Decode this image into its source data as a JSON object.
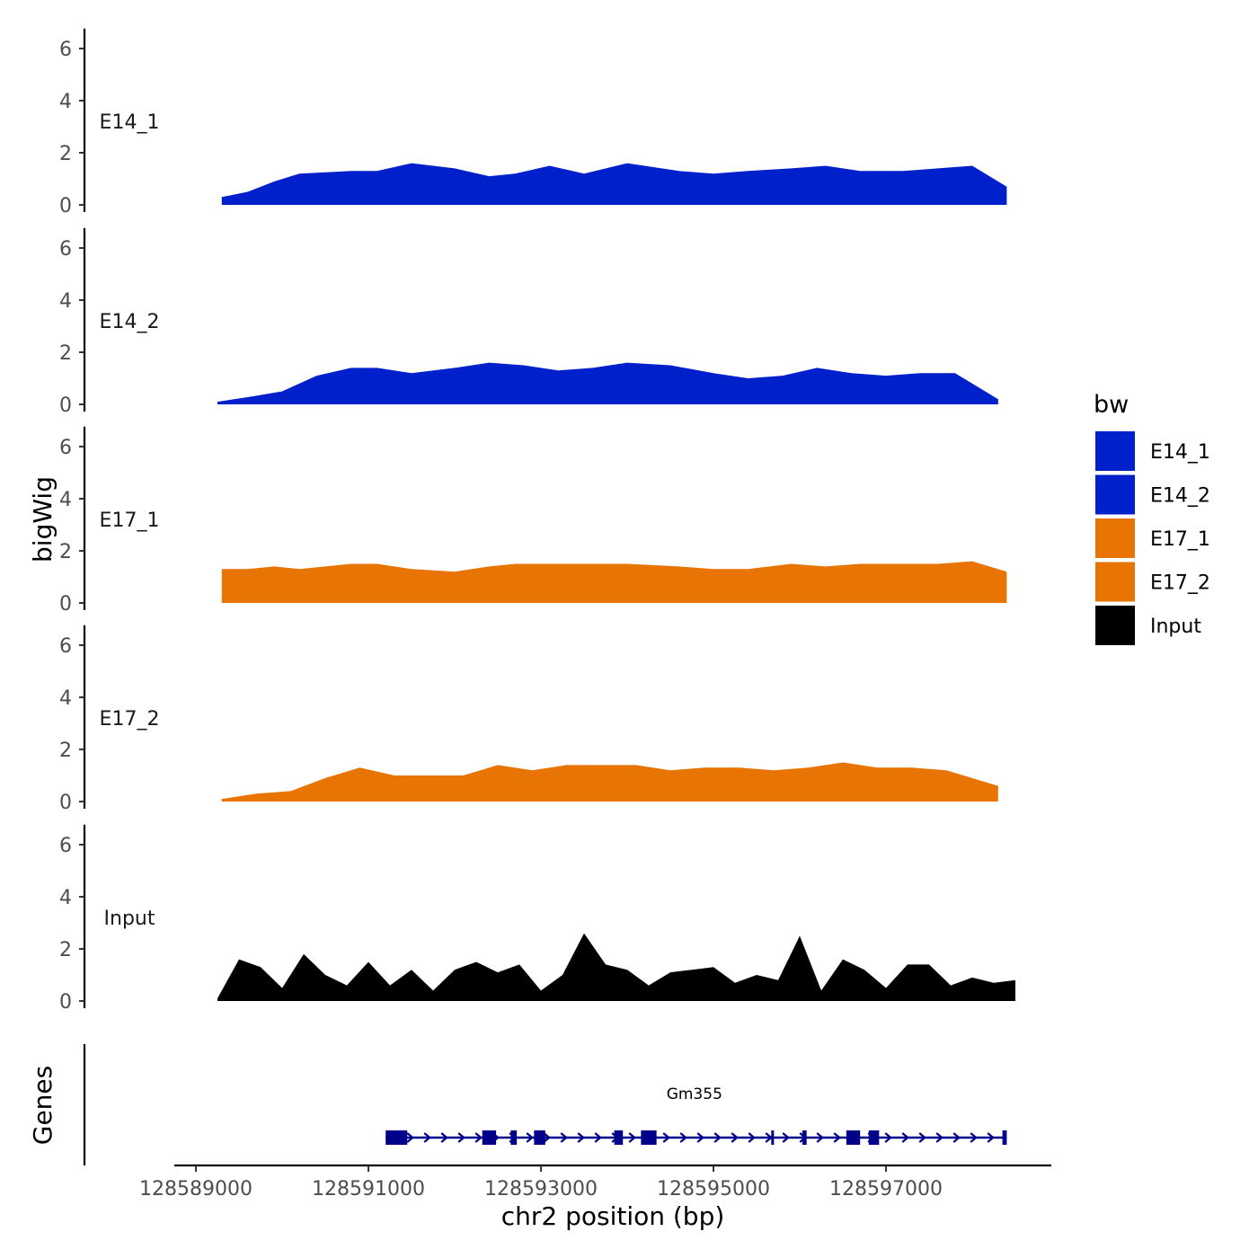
{
  "chart_data": {
    "type": "area",
    "chromosome": "chr2",
    "xlabel": "chr2 position (bp)",
    "ylabel_tracks": "bigWig",
    "ylabel_genes": "Genes",
    "xlim": [
      128588950,
      128598650
    ],
    "ylim": [
      0,
      6.7
    ],
    "x_ticks": [
      128589000,
      128591000,
      128593000,
      128595000,
      128597000
    ],
    "x_tick_labels": [
      "128589000",
      "128591000",
      "128593000",
      "128595000",
      "128597000"
    ],
    "y_ticks": [
      0,
      2,
      4,
      6
    ],
    "y_tick_labels": [
      "0",
      "2",
      "4",
      "6"
    ],
    "legend": {
      "title": "bw",
      "position": "right",
      "entries": [
        {
          "name": "E14_1",
          "color": "#0020cc"
        },
        {
          "name": "E14_2",
          "color": "#0020cc"
        },
        {
          "name": "E17_1",
          "color": "#e87404"
        },
        {
          "name": "E17_2",
          "color": "#e87404"
        },
        {
          "name": "Input",
          "color": "#000000"
        }
      ]
    },
    "series": [
      {
        "name": "E14_1",
        "color": "#0020cc",
        "x": [
          128589300,
          128589600,
          128589910,
          128590200,
          128590800,
          128591100,
          128591500,
          128592000,
          128592400,
          128592700,
          128593100,
          128593500,
          128594000,
          128594600,
          128595000,
          128595400,
          128595900,
          128596300,
          128596700,
          128597200,
          128597600,
          128598000,
          128598400
        ],
        "values": [
          0.3,
          0.5,
          0.9,
          1.2,
          1.3,
          1.3,
          1.6,
          1.4,
          1.1,
          1.2,
          1.5,
          1.2,
          1.6,
          1.3,
          1.2,
          1.3,
          1.4,
          1.5,
          1.3,
          1.3,
          1.4,
          1.5,
          0.7
        ]
      },
      {
        "name": "E14_2",
        "color": "#0020cc",
        "x": [
          128589250,
          128589650,
          128590000,
          128590400,
          128590800,
          128591100,
          128591500,
          128592000,
          128592400,
          128592800,
          128593200,
          128593600,
          128594000,
          128594500,
          128595000,
          128595400,
          128595800,
          128596200,
          128596600,
          128597000,
          128597400,
          128597800,
          128598300
        ],
        "values": [
          0.1,
          0.3,
          0.5,
          1.1,
          1.4,
          1.4,
          1.2,
          1.4,
          1.6,
          1.5,
          1.3,
          1.4,
          1.6,
          1.5,
          1.2,
          1.0,
          1.1,
          1.4,
          1.2,
          1.1,
          1.2,
          1.2,
          0.2
        ]
      },
      {
        "name": "E17_1",
        "color": "#e87404",
        "x": [
          128589300,
          128589600,
          128589910,
          128590200,
          128590800,
          128591100,
          128591500,
          128592000,
          128592400,
          128592700,
          128593100,
          128593500,
          128594000,
          128594600,
          128595000,
          128595400,
          128595900,
          128596300,
          128596700,
          128597200,
          128597600,
          128598000,
          128598400
        ],
        "values": [
          1.3,
          1.3,
          1.4,
          1.3,
          1.5,
          1.5,
          1.3,
          1.2,
          1.4,
          1.5,
          1.5,
          1.5,
          1.5,
          1.4,
          1.3,
          1.3,
          1.5,
          1.4,
          1.5,
          1.5,
          1.5,
          1.6,
          1.2
        ]
      },
      {
        "name": "E17_2",
        "color": "#e87404",
        "x": [
          128589300,
          128589700,
          128590100,
          128590500,
          128590900,
          128591300,
          128591700,
          128592100,
          128592500,
          128592900,
          128593300,
          128593700,
          128594100,
          128594500,
          128594900,
          128595300,
          128595700,
          128596100,
          128596500,
          128596900,
          128597300,
          128597700,
          128598300
        ],
        "values": [
          0.1,
          0.3,
          0.4,
          0.9,
          1.3,
          1.0,
          1.0,
          1.0,
          1.4,
          1.2,
          1.4,
          1.4,
          1.4,
          1.2,
          1.3,
          1.3,
          1.2,
          1.3,
          1.5,
          1.3,
          1.3,
          1.2,
          0.6
        ]
      },
      {
        "name": "Input",
        "color": "#000000",
        "x": [
          128589250,
          128589500,
          128589750,
          128590000,
          128590250,
          128590500,
          128590750,
          128591000,
          128591250,
          128591500,
          128591750,
          128592000,
          128592250,
          128592500,
          128592750,
          128593000,
          128593250,
          128593500,
          128593750,
          128594000,
          128594250,
          128594500,
          128594750,
          128595000,
          128595250,
          128595500,
          128595750,
          128596000,
          128596250,
          128596500,
          128596750,
          128597000,
          128597250,
          128597500,
          128597750,
          128598000,
          128598250,
          128598500
        ],
        "values": [
          0.1,
          1.6,
          1.3,
          0.5,
          1.8,
          1.0,
          0.6,
          1.5,
          0.6,
          1.2,
          0.4,
          1.2,
          1.5,
          1.1,
          1.4,
          0.4,
          1.0,
          2.6,
          1.4,
          1.2,
          0.6,
          1.1,
          1.2,
          1.3,
          0.7,
          1.0,
          0.8,
          2.5,
          0.4,
          1.6,
          1.2,
          0.5,
          1.4,
          1.4,
          0.6,
          0.9,
          0.7,
          0.8
        ]
      }
    ],
    "genes": [
      {
        "name": "Gm355",
        "strand": "+",
        "start": 128591200,
        "end": 128598400,
        "exons": [
          [
            128591200,
            128591450
          ],
          [
            128592320,
            128592480
          ],
          [
            128592650,
            128592720
          ],
          [
            128592920,
            128593050
          ],
          [
            128593850,
            128593950
          ],
          [
            128594160,
            128594340
          ],
          [
            128595670,
            128595700
          ],
          [
            128596030,
            128596080
          ],
          [
            128596540,
            128596700
          ],
          [
            128596800,
            128596920
          ],
          [
            128598350,
            128598400
          ]
        ]
      }
    ]
  }
}
